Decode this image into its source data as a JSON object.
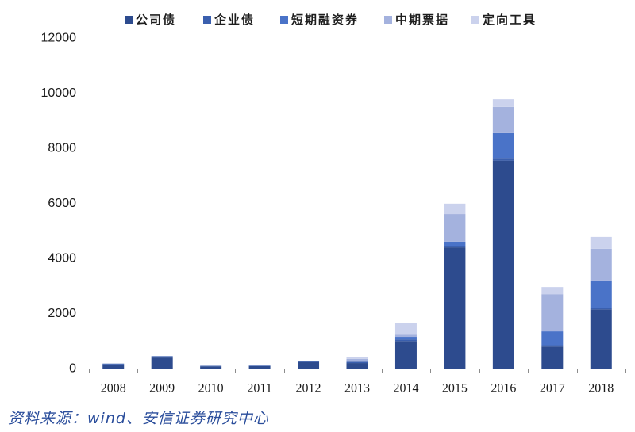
{
  "chart_data": {
    "type": "bar",
    "stacked": true,
    "categories": [
      "2008",
      "2009",
      "2010",
      "2011",
      "2012",
      "2013",
      "2014",
      "2015",
      "2016",
      "2017",
      "2018"
    ],
    "series": [
      {
        "name": "公司债",
        "color": "#2d4b8e",
        "values": [
          150,
          400,
          80,
          90,
          240,
          200,
          1000,
          4400,
          7550,
          800,
          2150
        ]
      },
      {
        "name": "企业债",
        "color": "#3a5fae",
        "values": [
          30,
          50,
          20,
          20,
          40,
          50,
          60,
          60,
          100,
          50,
          50
        ]
      },
      {
        "name": "短期融资券",
        "color": "#4a73c8",
        "values": [
          0,
          0,
          0,
          0,
          0,
          0,
          90,
          150,
          900,
          500,
          1000
        ]
      },
      {
        "name": "中期票据",
        "color": "#a4b2de",
        "values": [
          0,
          0,
          0,
          10,
          0,
          100,
          110,
          1000,
          950,
          1350,
          1150
        ]
      },
      {
        "name": "定向工具",
        "color": "#cbd2ed",
        "values": [
          0,
          0,
          0,
          10,
          0,
          80,
          380,
          380,
          280,
          260,
          430
        ]
      }
    ],
    "ylim": [
      0,
      12000
    ],
    "yticks": [
      0,
      2000,
      4000,
      6000,
      8000,
      10000,
      12000
    ],
    "grid": false,
    "legend": "top"
  },
  "source": "资料来源：wind、安信证券研究中心"
}
